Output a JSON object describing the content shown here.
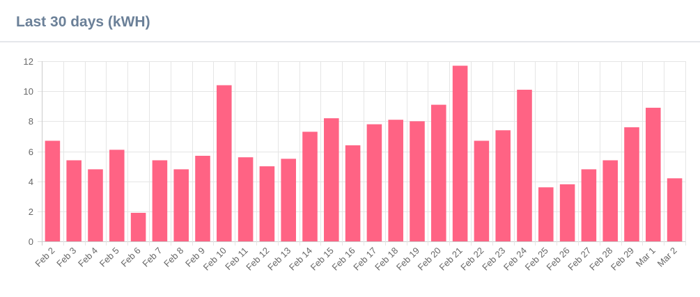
{
  "card": {
    "title": "Last 30 days (kWH)"
  },
  "colors": {
    "bar": "#ff6384",
    "grid": "#e5e5e5",
    "axis": "#cccccc",
    "title": "#6b8098",
    "tick_text": "#666666"
  },
  "chart_data": {
    "type": "bar",
    "title": "Last 30 days (kWH)",
    "xlabel": "",
    "ylabel": "",
    "ylim": [
      0,
      12
    ],
    "yticks": [
      0,
      2,
      4,
      6,
      8,
      10,
      12
    ],
    "grid": true,
    "legend": "none",
    "categories": [
      "Feb 2",
      "Feb 3",
      "Feb 4",
      "Feb 5",
      "Feb 6",
      "Feb 7",
      "Feb 8",
      "Feb 9",
      "Feb 10",
      "Feb 11",
      "Feb 12",
      "Feb 13",
      "Feb 14",
      "Feb 15",
      "Feb 16",
      "Feb 17",
      "Feb 18",
      "Feb 19",
      "Feb 20",
      "Feb 21",
      "Feb 22",
      "Feb 23",
      "Feb 24",
      "Feb 25",
      "Feb 26",
      "Feb 27",
      "Feb 28",
      "Feb 29",
      "Mar 1",
      "Mar 2"
    ],
    "values": [
      6.7,
      5.4,
      4.8,
      6.1,
      1.9,
      5.4,
      4.8,
      5.7,
      10.4,
      5.6,
      5.0,
      5.5,
      7.3,
      8.2,
      6.4,
      7.8,
      8.1,
      8.0,
      9.1,
      11.7,
      6.7,
      7.4,
      10.1,
      3.6,
      3.8,
      4.8,
      5.4,
      7.6,
      8.9,
      4.2
    ]
  }
}
